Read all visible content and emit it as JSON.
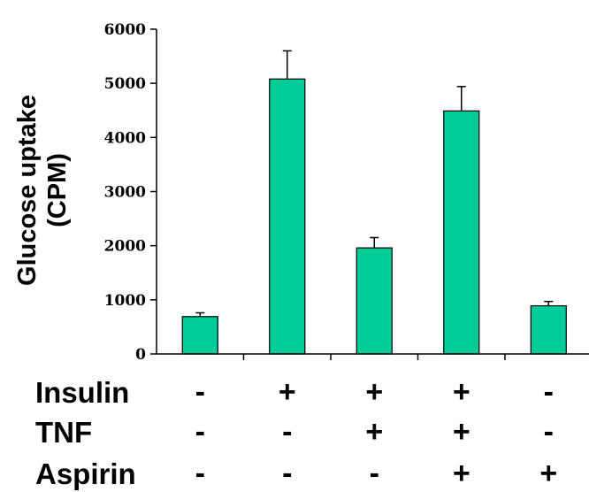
{
  "chart_data": {
    "type": "bar",
    "ylabel_lines": [
      "Glucose uptake",
      "(CPM)"
    ],
    "ylim": [
      0,
      6000
    ],
    "yticks": [
      0,
      1000,
      2000,
      3000,
      4000,
      5000,
      6000
    ],
    "yticks_text": [
      "0",
      "1000",
      "2000",
      "3000",
      "4000",
      "5000",
      "6000"
    ],
    "series": [
      {
        "values": [
          690,
          5080,
          1960,
          4490,
          890
        ],
        "errors": [
          70,
          520,
          190,
          450,
          80
        ]
      }
    ],
    "bar_color": "#00cc99",
    "grid": false,
    "conditions": [
      {
        "label": "Insulin",
        "signs": [
          "-",
          "+",
          "+",
          "+",
          "-"
        ]
      },
      {
        "label": "TNF",
        "signs": [
          "-",
          "-",
          "+",
          "+",
          "-"
        ]
      },
      {
        "label": "Aspirin",
        "signs": [
          "-",
          "-",
          "-",
          "+",
          "+"
        ]
      }
    ]
  }
}
